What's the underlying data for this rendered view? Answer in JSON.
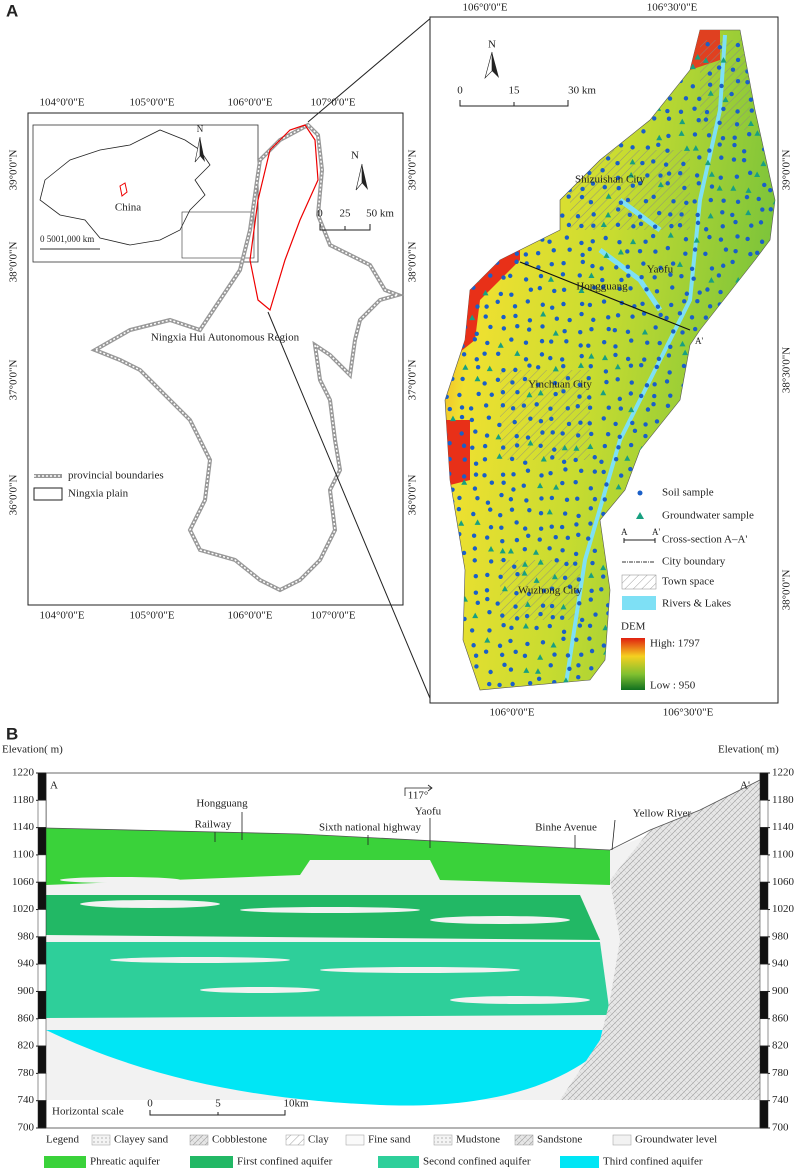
{
  "panel_a": {
    "label": "A",
    "overview_map": {
      "lon_labels": [
        "104°0'0\"E",
        "105°0'0\"E",
        "106°0'0\"E",
        "107°0'0\"E"
      ],
      "lat_labels": [
        "39°0'0\"N",
        "38°0'0\"N",
        "37°0'0\"N",
        "36°0'0\"N"
      ],
      "inset": {
        "country": "China",
        "scale": "0 5001,000 km",
        "north": "N"
      },
      "north": "N",
      "scale": [
        "0",
        "25",
        "50 km"
      ],
      "region": "Ningxia Hui Autonomous Region",
      "legend": [
        "provincial boundaries",
        "Ningxia plain"
      ]
    },
    "detail_map": {
      "lon_labels": [
        "106°0'0\"E",
        "106°30'0\"E"
      ],
      "lat_labels": [
        "39°0'0\"N",
        "38°30'0\"N",
        "38°0'0\"N"
      ],
      "north": "N",
      "scale": [
        "0",
        "15",
        "30 km"
      ],
      "places": [
        "Shizuishan City",
        "Hongguang",
        "Yaofu",
        "Yinchuan City",
        "Wuzhong City"
      ],
      "section_end": "A'",
      "legend": {
        "items": [
          "Soil sample",
          "Groundwater sample",
          "Cross-section A–A'",
          "City boundary",
          "Town space",
          "Rivers & Lakes"
        ],
        "section_ends": [
          "A",
          "A'"
        ],
        "dem_title": "DEM",
        "dem_high": "High: 1797",
        "dem_low": "Low : 950"
      }
    }
  },
  "panel_b": {
    "label": "B",
    "axis_title": "Elevation( m)",
    "elevation_ticks": [
      1220,
      1180,
      1140,
      1100,
      1060,
      1020,
      980,
      940,
      900,
      860,
      820,
      780,
      740,
      700
    ],
    "section_ends": [
      "A",
      "A'"
    ],
    "annotations": [
      "Hongguang",
      "Railway",
      "Sixth national highway",
      "Yaofu",
      "Binhe Avenue",
      "Yellow River"
    ],
    "bearing": "117°",
    "scale": {
      "title": "Horizontal scale",
      "ticks": [
        "0",
        "5",
        "10km"
      ]
    },
    "legend": {
      "title": "Legend",
      "lithology": [
        "Clayey sand",
        "Cobblestone",
        "Clay",
        "Fine sand",
        "Mudstone",
        "Sandstone",
        "Groundwater level"
      ],
      "aquifers": [
        "Phreatic aquifer",
        "First confined aquifer",
        "Second confined aquifer",
        "Third confined aquifer"
      ]
    }
  }
}
